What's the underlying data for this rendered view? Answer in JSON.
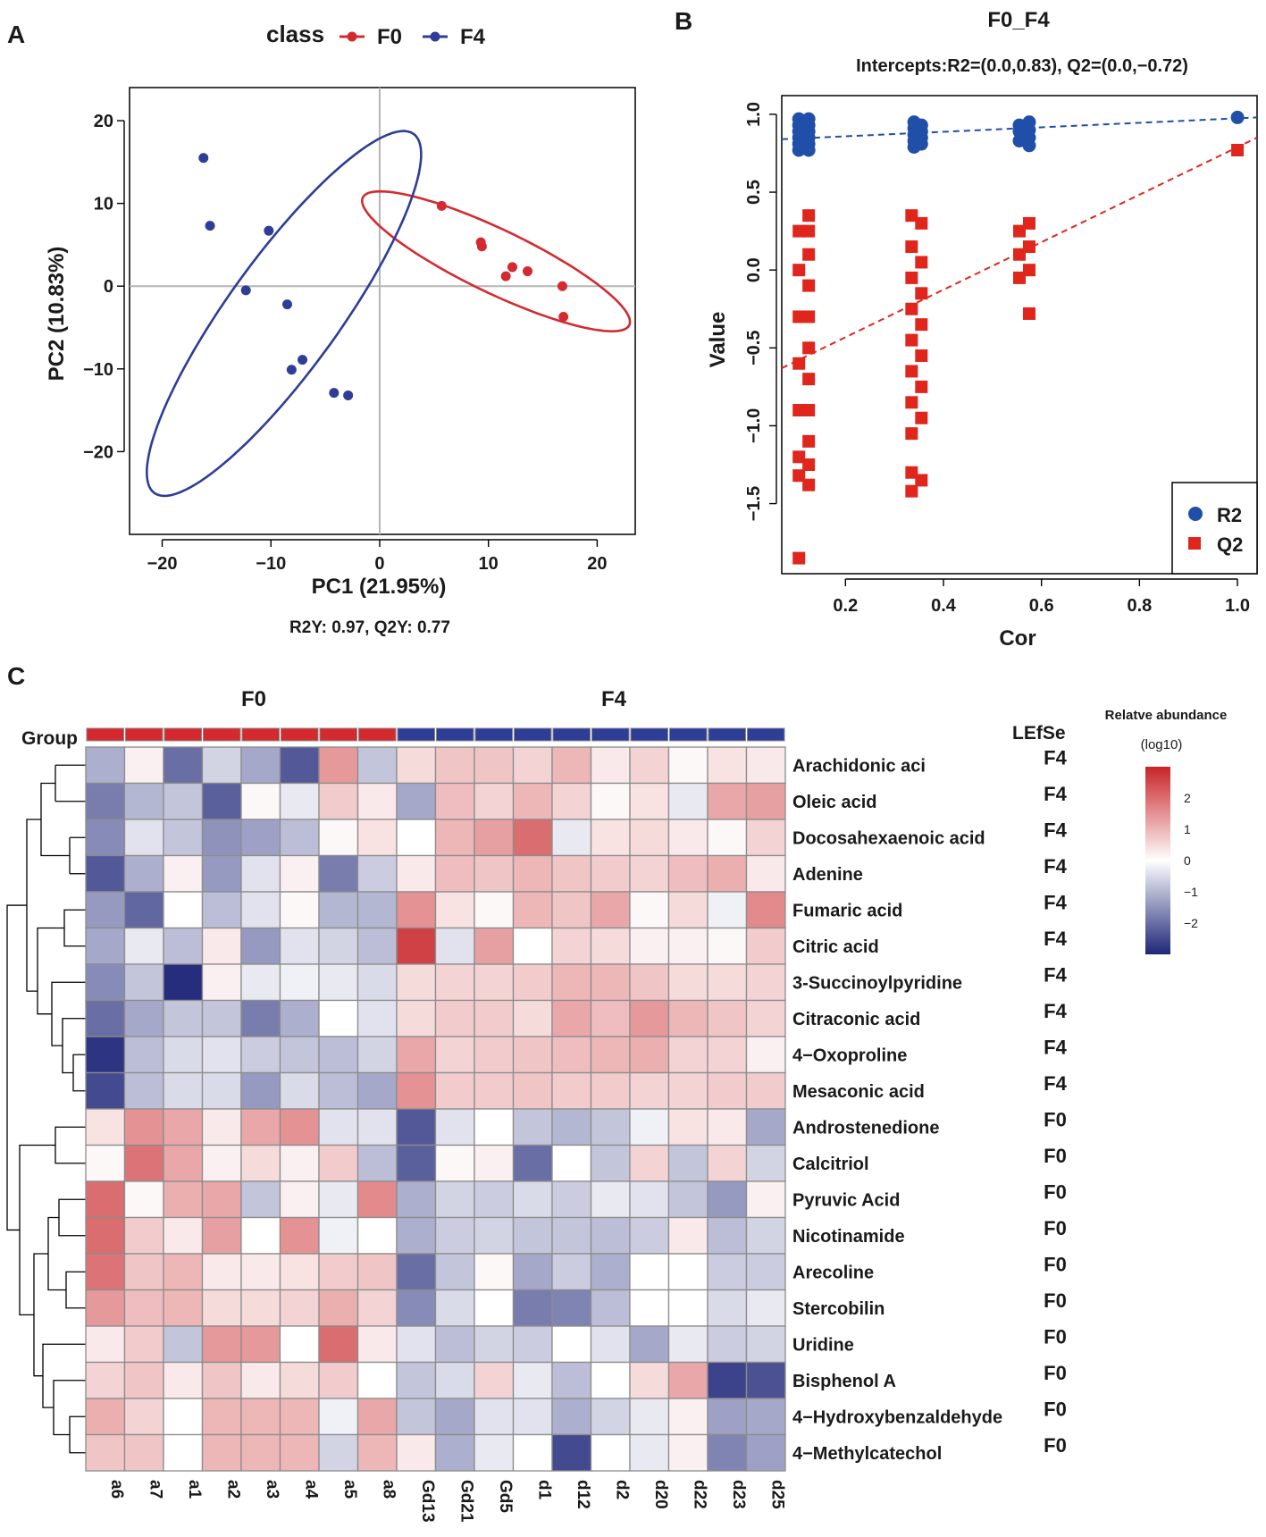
{
  "colors": {
    "f0": "#d42a2f",
    "f4": "#2e3d96",
    "r2": "#1f4fa8",
    "q2": "#e0261c",
    "grid": "#b0b0b0"
  },
  "panels": {
    "a": "A",
    "b": "B",
    "c": "C"
  },
  "chart_data": [
    {
      "panel": "A",
      "type": "scatter",
      "xlabel": "PC1 (21.95%)",
      "ylabel": "PC2 (10.83%)",
      "xlim": [
        -23,
        23.5
      ],
      "ylim": [
        -30,
        24
      ],
      "xticks": [
        -20,
        -10,
        0,
        10,
        20
      ],
      "yticks": [
        -20,
        -10,
        0,
        10,
        20
      ],
      "xtick_labels": [
        "−20",
        "−10",
        "0",
        "10",
        "20"
      ],
      "ytick_labels": [
        "−20",
        "−10",
        "0",
        "10",
        "20"
      ],
      "legend": {
        "title": "class",
        "items": [
          "F0",
          "F4"
        ],
        "position": "top"
      },
      "footnote": "R2Y: 0.97, Q2Y: 0.77",
      "series": [
        {
          "name": "F0",
          "color": "#d42a2f",
          "points": [
            [
              5.7,
              9.7
            ],
            [
              9.3,
              5.3
            ],
            [
              9.4,
              4.8
            ],
            [
              12.2,
              2.3
            ],
            [
              11.6,
              1.2
            ],
            [
              13.6,
              1.8
            ],
            [
              16.8,
              0.0
            ],
            [
              16.9,
              -3.7
            ]
          ],
          "ellipse": {
            "cx": 10.7,
            "cy": 3.0,
            "rx": 14.5,
            "ry": 3.6,
            "angle_deg": -33
          }
        },
        {
          "name": "F4",
          "color": "#2e3d96",
          "points": [
            [
              -16.2,
              15.5
            ],
            [
              -15.6,
              7.3
            ],
            [
              -10.2,
              6.7
            ],
            [
              -12.3,
              -0.5
            ],
            [
              -8.5,
              -2.2
            ],
            [
              -7.1,
              -8.9
            ],
            [
              -8.1,
              -10.1
            ],
            [
              -4.2,
              -12.9
            ],
            [
              -2.9,
              -13.2
            ]
          ],
          "ellipse": {
            "cx": -8.8,
            "cy": -3.3,
            "rx": 24.8,
            "ry": 5.5,
            "angle_deg": 62
          }
        }
      ]
    },
    {
      "panel": "B",
      "type": "scatter",
      "title": "F0_F4",
      "subtitle": "Intercepts:R2=(0.0,0.83), Q2=(0.0,−0.72)",
      "xlabel": "Cor",
      "ylabel": "Value",
      "xlim": [
        0.07,
        1.04
      ],
      "ylim": [
        -1.95,
        1.12
      ],
      "xticks": [
        0.2,
        0.4,
        0.6,
        0.8,
        1.0
      ],
      "xtick_labels": [
        "0.2",
        "0.4",
        "0.6",
        "0.8",
        "1.0"
      ],
      "yticks": [
        1.0,
        0.5,
        0.0,
        -0.5,
        -1.0,
        -1.5
      ],
      "ytick_labels": [
        "1.0",
        "0.5",
        "0.0",
        "−0.5",
        "−1.0",
        "−1.5"
      ],
      "legend": {
        "items": [
          "R2",
          "Q2"
        ],
        "position": "bottom-right"
      },
      "series": [
        {
          "name": "R2",
          "marker": "circle",
          "color": "#1f4fa8",
          "points": [
            [
              0.105,
              0.97
            ],
            [
              0.105,
              0.93
            ],
            [
              0.105,
              0.89
            ],
            [
              0.105,
              0.85
            ],
            [
              0.105,
              0.81
            ],
            [
              0.105,
              0.77
            ],
            [
              0.125,
              0.97
            ],
            [
              0.125,
              0.93
            ],
            [
              0.125,
              0.89
            ],
            [
              0.125,
              0.85
            ],
            [
              0.125,
              0.81
            ],
            [
              0.125,
              0.77
            ],
            [
              0.34,
              0.95
            ],
            [
              0.34,
              0.91
            ],
            [
              0.34,
              0.87
            ],
            [
              0.34,
              0.83
            ],
            [
              0.34,
              0.79
            ],
            [
              0.355,
              0.93
            ],
            [
              0.355,
              0.89
            ],
            [
              0.355,
              0.85
            ],
            [
              0.355,
              0.81
            ],
            [
              0.555,
              0.93
            ],
            [
              0.555,
              0.89
            ],
            [
              0.555,
              0.83
            ],
            [
              0.575,
              0.95
            ],
            [
              0.575,
              0.9
            ],
            [
              0.575,
              0.85
            ],
            [
              0.575,
              0.8
            ],
            [
              1.0,
              0.98
            ]
          ],
          "fit": {
            "x": [
              0.07,
              1.04
            ],
            "y": [
              0.84,
              0.98
            ]
          }
        },
        {
          "name": "Q2",
          "marker": "square",
          "color": "#e0261c",
          "points": [
            [
              0.105,
              0.25
            ],
            [
              0.105,
              0.0
            ],
            [
              0.105,
              -0.3
            ],
            [
              0.105,
              -0.6
            ],
            [
              0.105,
              -0.9
            ],
            [
              0.105,
              -1.2
            ],
            [
              0.105,
              -1.32
            ],
            [
              0.105,
              -1.85
            ],
            [
              0.125,
              0.35
            ],
            [
              0.125,
              0.25
            ],
            [
              0.125,
              0.1
            ],
            [
              0.125,
              -0.1
            ],
            [
              0.125,
              -0.3
            ],
            [
              0.125,
              -0.5
            ],
            [
              0.125,
              -0.7
            ],
            [
              0.125,
              -0.9
            ],
            [
              0.125,
              -1.1
            ],
            [
              0.125,
              -1.25
            ],
            [
              0.125,
              -1.38
            ],
            [
              0.335,
              0.35
            ],
            [
              0.335,
              0.15
            ],
            [
              0.335,
              -0.05
            ],
            [
              0.335,
              -0.25
            ],
            [
              0.335,
              -0.45
            ],
            [
              0.335,
              -0.65
            ],
            [
              0.335,
              -0.85
            ],
            [
              0.335,
              -1.05
            ],
            [
              0.335,
              -1.3
            ],
            [
              0.335,
              -1.42
            ],
            [
              0.355,
              0.3
            ],
            [
              0.355,
              0.05
            ],
            [
              0.355,
              -0.15
            ],
            [
              0.355,
              -0.35
            ],
            [
              0.355,
              -0.55
            ],
            [
              0.355,
              -0.75
            ],
            [
              0.355,
              -0.95
            ],
            [
              0.355,
              -1.35
            ],
            [
              0.555,
              0.25
            ],
            [
              0.555,
              0.1
            ],
            [
              0.555,
              -0.05
            ],
            [
              0.575,
              0.3
            ],
            [
              0.575,
              0.15
            ],
            [
              0.575,
              0.0
            ],
            [
              0.575,
              -0.28
            ],
            [
              1.0,
              0.77
            ]
          ],
          "fit": {
            "x": [
              0.07,
              1.04
            ],
            "y": [
              -0.63,
              0.85
            ]
          }
        }
      ]
    },
    {
      "panel": "C",
      "type": "heatmap",
      "group_label": "Group",
      "group_headers": [
        "F0",
        "F4"
      ],
      "lefse_header": "LEfSe",
      "colorbar": {
        "title": "Relatve abundance",
        "subtitle": "(log10)",
        "range": [
          -3,
          3
        ],
        "ticks": [
          2,
          1,
          0,
          -1,
          -2
        ],
        "tick_labels": [
          "2",
          "1",
          "0",
          "−1",
          "−2"
        ]
      },
      "columns": [
        "a6",
        "a7",
        "a1",
        "a2",
        "a3",
        "a4",
        "a5",
        "a8",
        "Gd13",
        "Gd21",
        "Gd5",
        "d1",
        "d12",
        "d2",
        "d20",
        "d22",
        "d23",
        "d25"
      ],
      "column_groups": [
        "F0",
        "F0",
        "F0",
        "F0",
        "F0",
        "F0",
        "F0",
        "F0",
        "F4",
        "F4",
        "F4",
        "F4",
        "F4",
        "F4",
        "F4",
        "F4",
        "F4",
        "F4"
      ],
      "rows": [
        "Arachidonic aci",
        "Oleic acid",
        "Docosahexaenoic acid",
        "Adenine",
        "Fumaric acid",
        "Citric acid",
        "3-Succinoylpyridine",
        "Citraconic acid",
        "4−Oxoproline",
        "Mesaconic acid",
        "Androstenedione",
        "Calcitriol",
        "Pyruvic Acid",
        "Nicotinamide",
        "Arecoline",
        "Stercobilin",
        "Uridine",
        "Bisphenol A",
        "4−Hydroxybenzaldehyde",
        "4−Methylcatechol"
      ],
      "lefse": [
        "F4",
        "F4",
        "F4",
        "F4",
        "F4",
        "F4",
        "F4",
        "F4",
        "F4",
        "F4",
        "F0",
        "F0",
        "F0",
        "F0",
        "F0",
        "F0",
        "F0",
        "F0",
        "F0",
        "F0"
      ],
      "values": [
        [
          -1.1,
          0.2,
          -2.0,
          -0.6,
          -1.2,
          -2.3,
          1.4,
          -0.8,
          0.5,
          0.8,
          0.8,
          0.6,
          1.0,
          0.3,
          0.6,
          0.1,
          0.4,
          0.3
        ],
        [
          -1.8,
          -1.0,
          -0.8,
          -2.2,
          0.1,
          -0.3,
          0.7,
          0.3,
          -1.2,
          0.9,
          0.6,
          1.0,
          0.6,
          0.1,
          0.4,
          -0.3,
          1.2,
          1.3
        ],
        [
          -1.6,
          -0.4,
          -0.8,
          -1.5,
          -1.3,
          -0.9,
          0.1,
          0.4,
          0.0,
          1.0,
          1.3,
          2.0,
          -0.3,
          0.4,
          0.5,
          0.3,
          0.1,
          0.6
        ],
        [
          -2.3,
          -1.1,
          0.2,
          -1.4,
          -0.4,
          0.2,
          -1.8,
          -0.7,
          0.3,
          0.9,
          0.8,
          1.0,
          0.8,
          0.7,
          0.6,
          0.9,
          1.1,
          0.3
        ],
        [
          -1.4,
          -2.1,
          0.0,
          -0.9,
          -0.4,
          0.1,
          -1.0,
          -1.0,
          1.5,
          0.4,
          0.1,
          1.0,
          0.8,
          1.2,
          0.1,
          0.5,
          -0.2,
          1.6
        ],
        [
          -1.2,
          -0.3,
          -0.9,
          0.3,
          -1.4,
          -0.4,
          -0.6,
          -0.9,
          2.6,
          -0.4,
          1.3,
          0.0,
          0.6,
          0.5,
          0.2,
          0.2,
          0.1,
          0.7
        ],
        [
          -1.6,
          -0.8,
          -2.9,
          0.2,
          -0.3,
          -0.2,
          -0.3,
          -0.5,
          0.5,
          0.6,
          0.6,
          0.7,
          1.0,
          1.0,
          0.8,
          0.5,
          0.5,
          0.6
        ],
        [
          -2.0,
          -1.2,
          -0.8,
          -0.8,
          -1.8,
          -1.1,
          0.0,
          -0.4,
          0.5,
          0.7,
          0.7,
          0.5,
          1.2,
          0.9,
          1.4,
          1.0,
          0.8,
          0.6
        ],
        [
          -2.8,
          -0.9,
          -0.5,
          -0.4,
          -0.7,
          -0.8,
          -0.9,
          -0.6,
          1.2,
          0.6,
          0.7,
          0.8,
          0.9,
          1.0,
          1.1,
          0.6,
          0.6,
          0.2
        ],
        [
          -2.5,
          -0.9,
          -0.5,
          -0.5,
          -1.4,
          -0.5,
          -0.9,
          -1.2,
          1.5,
          0.7,
          0.7,
          0.8,
          0.7,
          0.7,
          0.6,
          0.6,
          0.7,
          0.7
        ],
        [
          0.4,
          1.5,
          1.2,
          0.3,
          1.2,
          1.5,
          -0.4,
          -0.4,
          -2.3,
          -0.4,
          0.0,
          -0.8,
          -1.0,
          -0.8,
          -0.2,
          0.4,
          0.3,
          -1.2
        ],
        [
          0.1,
          1.9,
          1.2,
          0.2,
          0.5,
          0.2,
          0.7,
          -0.9,
          -2.2,
          0.1,
          0.2,
          -2.0,
          0.0,
          -0.8,
          0.6,
          -0.8,
          0.6,
          -0.6
        ],
        [
          2.0,
          0.1,
          1.1,
          1.2,
          -0.8,
          0.2,
          -0.3,
          1.6,
          -1.1,
          -0.6,
          -0.7,
          -0.5,
          -0.7,
          -0.3,
          -0.4,
          -0.8,
          -1.4,
          0.2
        ],
        [
          2.0,
          0.7,
          0.3,
          1.3,
          0.0,
          1.5,
          -0.2,
          0.0,
          -1.1,
          -0.7,
          -0.6,
          -0.8,
          -0.8,
          -0.9,
          -0.7,
          0.3,
          -0.9,
          -0.6
        ],
        [
          1.9,
          0.8,
          1.0,
          0.3,
          0.3,
          0.4,
          0.7,
          0.8,
          -2.0,
          -0.8,
          0.1,
          -1.2,
          -0.7,
          -1.1,
          0.0,
          0.0,
          -0.7,
          -0.7
        ],
        [
          1.4,
          0.9,
          1.0,
          0.5,
          0.5,
          0.6,
          1.1,
          0.6,
          -1.6,
          -0.5,
          0.0,
          -1.8,
          -1.7,
          -0.9,
          0.0,
          0.0,
          -0.5,
          -0.3
        ],
        [
          0.3,
          0.7,
          -0.8,
          1.4,
          1.4,
          0.0,
          2.0,
          0.3,
          -0.4,
          -0.9,
          -0.6,
          -0.7,
          0.0,
          -0.4,
          -1.2,
          -0.3,
          -0.7,
          -0.6
        ],
        [
          0.6,
          0.8,
          0.3,
          0.8,
          0.3,
          0.5,
          0.7,
          0.0,
          -0.8,
          -0.5,
          0.6,
          -0.3,
          -0.9,
          0.0,
          0.5,
          1.2,
          -2.6,
          -2.4
        ],
        [
          1.1,
          0.6,
          0.0,
          1.0,
          1.0,
          1.0,
          -0.2,
          1.2,
          -0.8,
          -1.2,
          -0.4,
          -0.4,
          -1.1,
          -0.6,
          -0.3,
          0.2,
          -1.3,
          -1.2
        ],
        [
          0.8,
          0.8,
          0.0,
          1.0,
          1.0,
          1.0,
          -0.6,
          1.0,
          0.3,
          -1.1,
          -0.3,
          0.0,
          -2.5,
          0.0,
          -0.3,
          0.2,
          -1.7,
          -1.3
        ]
      ]
    }
  ]
}
